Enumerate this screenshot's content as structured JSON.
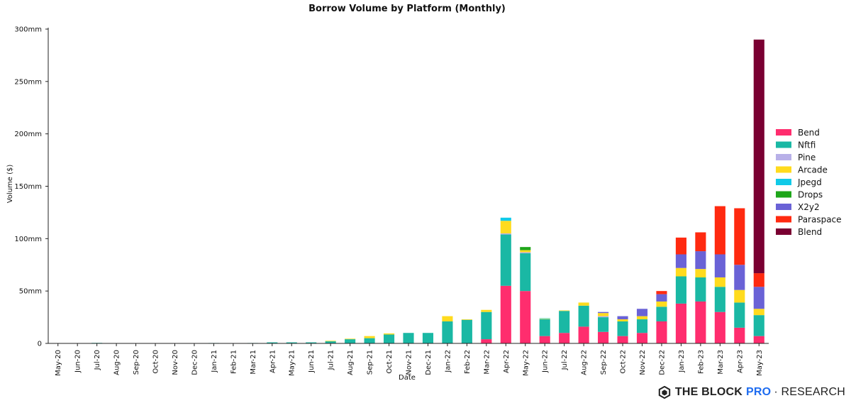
{
  "chart_data": {
    "type": "bar",
    "stacked": true,
    "title": "Borrow Volume by Platform (Monthly)",
    "xlabel": "Date",
    "ylabel": "Volume ($)",
    "ylim": [
      0,
      300
    ],
    "yticks": [
      0,
      50,
      100,
      150,
      200,
      250,
      300
    ],
    "ytick_labels": [
      "0",
      "50mm",
      "100mm",
      "150mm",
      "200mm",
      "250mm",
      "300mm"
    ],
    "legend_position": "right",
    "grid": false,
    "categories": [
      "May-20",
      "Jun-20",
      "Jul-20",
      "Aug-20",
      "Sep-20",
      "Oct-20",
      "Nov-20",
      "Dec-20",
      "Jan-21",
      "Feb-21",
      "Mar-21",
      "Apr-21",
      "May-21",
      "Jun-21",
      "Jul-21",
      "Aug-21",
      "Sep-21",
      "Oct-21",
      "Nov-21",
      "Dec-21",
      "Jan-22",
      "Feb-22",
      "Mar-22",
      "Apr-22",
      "May-22",
      "Jun-22",
      "Jul-22",
      "Aug-22",
      "Sep-22",
      "Oct-22",
      "Nov-22",
      "Dec-22",
      "Jan-23",
      "Feb-23",
      "Mar-23",
      "Apr-23",
      "May-23"
    ],
    "series": [
      {
        "name": "Bend",
        "color": "#ff2d6e",
        "values": [
          0,
          0,
          0,
          0,
          0,
          0,
          0,
          0,
          0,
          0,
          0,
          0,
          0,
          0,
          0,
          0,
          0,
          0,
          0,
          0,
          0,
          0,
          4,
          55,
          50,
          7,
          10,
          16,
          11,
          7,
          10,
          21,
          38,
          40,
          30,
          15,
          7
        ]
      },
      {
        "name": "Nftfi",
        "color": "#1ab8a4",
        "values": [
          0,
          0,
          0.5,
          0.2,
          0.2,
          0.2,
          0.3,
          0.3,
          0.4,
          0.3,
          0.4,
          1,
          1,
          1,
          2,
          4,
          5,
          8.5,
          10,
          10,
          21,
          22.5,
          26,
          49,
          36,
          16,
          21,
          20,
          14,
          14,
          13,
          14,
          26,
          23,
          24,
          24,
          20
        ]
      },
      {
        "name": "Pine",
        "color": "#b8b0e8",
        "values": [
          0,
          0,
          0,
          0,
          0,
          0,
          0,
          0,
          0,
          0,
          0,
          0,
          0,
          0,
          0,
          0,
          0,
          0,
          0,
          0,
          0,
          0,
          0,
          1,
          1,
          0,
          0,
          0,
          1,
          0,
          0,
          0,
          0,
          0,
          0,
          0,
          0
        ]
      },
      {
        "name": "Arcade",
        "color": "#ffdb1e",
        "values": [
          0,
          0,
          0,
          0,
          0,
          0,
          0,
          0,
          0,
          0,
          0,
          0,
          0,
          0,
          0.5,
          0.5,
          2,
          1,
          0,
          0,
          5,
          0.5,
          2,
          12,
          2,
          0.5,
          0.5,
          3,
          3,
          2,
          3,
          5,
          8,
          8,
          9,
          12,
          6
        ]
      },
      {
        "name": "Jpegd",
        "color": "#10cae8",
        "values": [
          0,
          0,
          0,
          0,
          0,
          0,
          0,
          0,
          0,
          0,
          0,
          0,
          0,
          0,
          0,
          0,
          0,
          0,
          0,
          0,
          0,
          0,
          0,
          3,
          0,
          0.5,
          0,
          0,
          0,
          0,
          0,
          0,
          0,
          0,
          0,
          0,
          0
        ]
      },
      {
        "name": "Drops",
        "color": "#1fa61a",
        "values": [
          0,
          0,
          0,
          0,
          0,
          0,
          0,
          0,
          0,
          0,
          0,
          0,
          0,
          0,
          0,
          0,
          0,
          0,
          0,
          0,
          0,
          0,
          0,
          0,
          3,
          0,
          0,
          0,
          0,
          0,
          0,
          0,
          0,
          0,
          0,
          0,
          0
        ]
      },
      {
        "name": "X2y2",
        "color": "#6a62d6",
        "values": [
          0,
          0,
          0,
          0,
          0,
          0,
          0,
          0,
          0,
          0,
          0,
          0,
          0,
          0,
          0,
          0,
          0,
          0,
          0,
          0,
          0,
          0,
          0,
          0,
          0,
          0,
          0,
          0,
          1,
          3,
          7,
          7,
          13,
          17,
          22,
          24,
          21
        ]
      },
      {
        "name": "Paraspace",
        "color": "#ff2a10",
        "values": [
          0,
          0,
          0,
          0,
          0,
          0,
          0,
          0,
          0,
          0,
          0,
          0,
          0,
          0,
          0,
          0,
          0,
          0,
          0,
          0,
          0,
          0,
          0,
          0,
          0,
          0,
          0,
          0,
          0,
          0,
          0,
          3,
          16,
          18,
          46,
          54,
          13
        ]
      },
      {
        "name": "Blend",
        "color": "#7a0032",
        "values": [
          0,
          0,
          0,
          0,
          0,
          0,
          0,
          0,
          0,
          0,
          0,
          0,
          0,
          0,
          0,
          0,
          0,
          0,
          0,
          0,
          0,
          0,
          0,
          0,
          0,
          0,
          0,
          0,
          0,
          0,
          0,
          0,
          0,
          0,
          0,
          0,
          223
        ]
      }
    ]
  },
  "brand": {
    "part1": "THE BLOCK",
    "part2": "PRO",
    "part3": "· RESEARCH"
  }
}
